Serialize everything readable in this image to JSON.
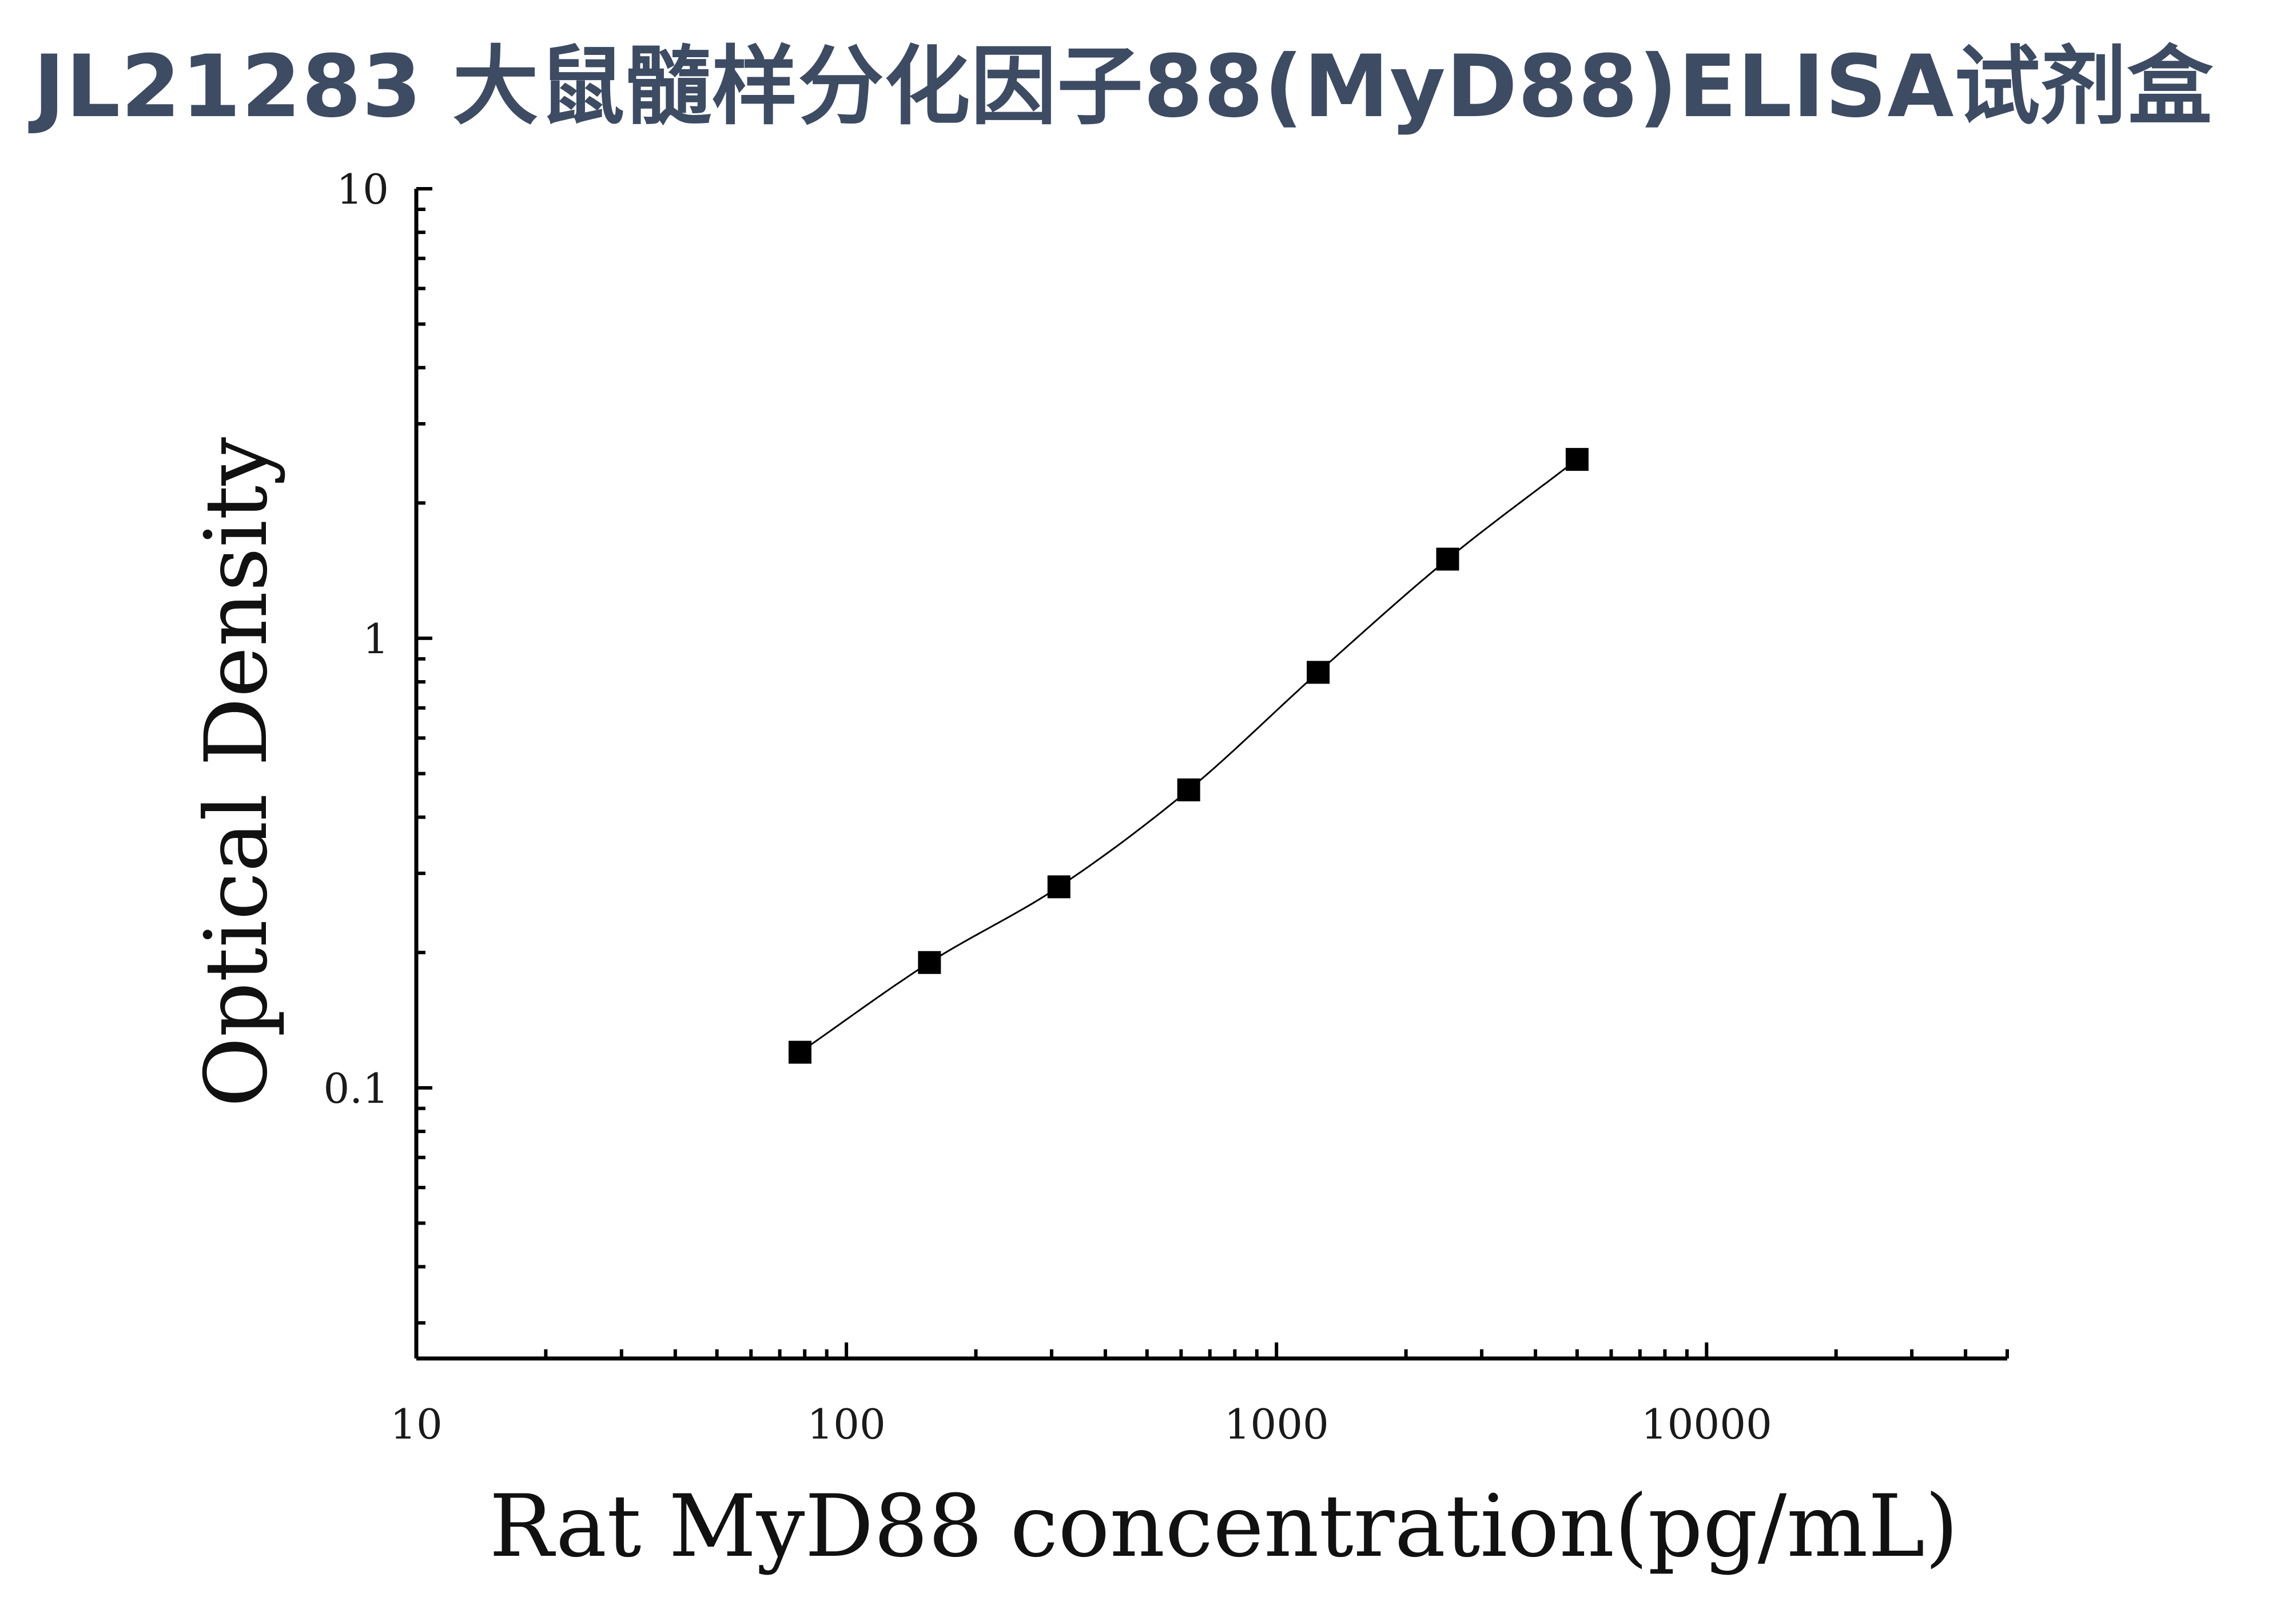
{
  "title": "JL21283 大鼠髓样分化因子88(MyD88)ELISA试剂盒",
  "chart_data": {
    "type": "scatter",
    "xlabel": "Rat MyD88 concentration(pg/mL)",
    "ylabel": "Optical Density",
    "xscale": "log",
    "yscale": "log",
    "xlim": [
      10,
      50000
    ],
    "ylim": [
      0.025,
      10
    ],
    "x_tick_labels": [
      "10",
      "100",
      "1000",
      "10000"
    ],
    "y_tick_labels": [
      "0.1",
      "1",
      "10"
    ],
    "series": [
      {
        "x": [
          78,
          156,
          312,
          625,
          1250,
          2500,
          5000
        ],
        "y": [
          0.12,
          0.19,
          0.28,
          0.46,
          0.84,
          1.5,
          2.5
        ],
        "marker": "square",
        "color": "#000000",
        "fit_curve": true
      }
    ],
    "grid": false,
    "legend": "none"
  }
}
